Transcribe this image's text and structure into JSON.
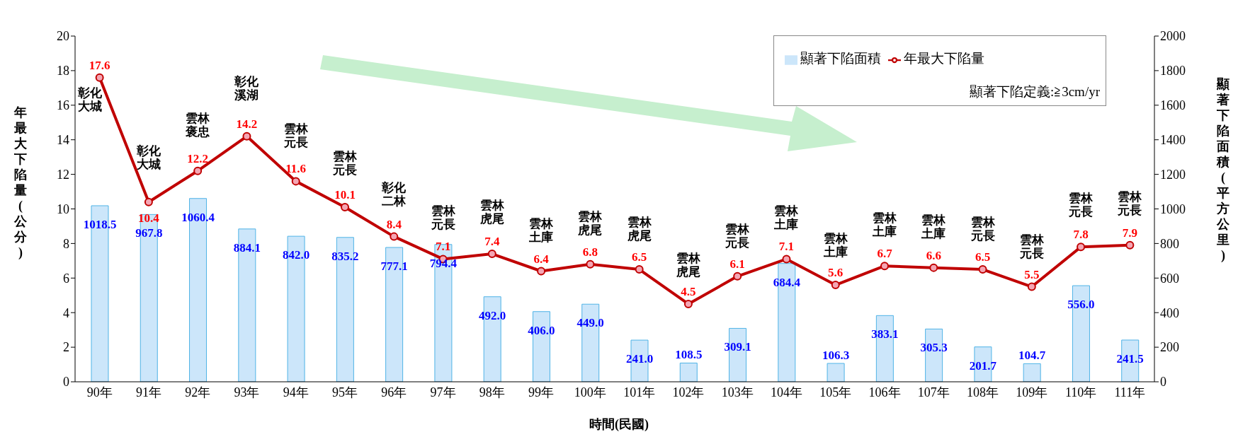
{
  "chart_data": {
    "type": "bar",
    "categories": [
      "90年",
      "91年",
      "92年",
      "93年",
      "94年",
      "95年",
      "96年",
      "97年",
      "98年",
      "99年",
      "100年",
      "101年",
      "102年",
      "103年",
      "104年",
      "105年",
      "106年",
      "107年",
      "108年",
      "109年",
      "110年",
      "111年"
    ],
    "series": [
      {
        "name": "顯著下陷面積",
        "axis": "y2",
        "color": "#cce6fa",
        "values": [
          1018.5,
          967.8,
          1060.4,
          884.1,
          842.0,
          835.2,
          777.1,
          794.4,
          492.0,
          406.0,
          449.0,
          241.0,
          108.5,
          309.1,
          684.4,
          106.3,
          383.1,
          305.3,
          201.7,
          104.7,
          556.0,
          241.5
        ],
        "value_labels": [
          "1018.5",
          "967.8",
          "1060.4",
          "884.1",
          "842.0",
          "835.2",
          "777.1",
          "794.4",
          "492.0",
          "406.0",
          "449.0",
          "241.0",
          "108.5",
          "309.1",
          "684.4",
          "106.3",
          "383.1",
          "305.3",
          "201.7",
          "104.7",
          "556.0",
          "241.5"
        ]
      },
      {
        "name": "年最大下陷量",
        "type": "line",
        "color": "#c00000",
        "values": [
          17.6,
          10.4,
          12.2,
          14.2,
          11.6,
          10.1,
          8.4,
          7.1,
          7.4,
          6.4,
          6.8,
          6.5,
          4.5,
          6.1,
          7.1,
          5.6,
          6.7,
          6.6,
          6.5,
          5.5,
          7.8,
          7.9
        ],
        "value_labels": [
          "17.6",
          "10.4",
          "12.2",
          "14.2",
          "11.6",
          "10.1",
          "8.4",
          "7.1",
          "7.4",
          "6.4",
          "6.8",
          "6.5",
          "4.5",
          "6.1",
          "7.1",
          "5.6",
          "6.7",
          "6.6",
          "6.5",
          "5.5",
          "7.8",
          "7.9"
        ]
      }
    ],
    "xlabel": "時間(民國)",
    "ylabel": "年最大下陷量(公分)",
    "y2label": "顯著下陷面積(平方公里)",
    "ylim": [
      0,
      20
    ],
    "yticks": [
      0,
      2,
      4,
      6,
      8,
      10,
      12,
      14,
      16,
      18,
      20
    ],
    "y2lim": [
      0,
      2000
    ],
    "y2ticks": [
      0,
      200,
      400,
      600,
      800,
      1000,
      1200,
      1400,
      1600,
      1800,
      2000
    ],
    "legend": "top right",
    "marker": "circle",
    "grid": false,
    "annotations": [
      "顯著下陷定義:≧3cm/yr",
      {
        "text": "彰化大城",
        "x": "90年",
        "y": 17.6
      },
      {
        "text": "彰化大城",
        "x": "91年",
        "y": 10.4
      },
      {
        "text": "雲林褒忠",
        "x": "92年",
        "y": 12.2
      },
      {
        "text": "彰化溪湖",
        "x": "93年",
        "y": 14.2
      },
      {
        "text": "雲林元長",
        "x": "94年",
        "y": 11.6
      },
      {
        "text": "雲林元長",
        "x": "95年",
        "y": 10.1
      },
      {
        "text": "彰化二林",
        "x": "96年",
        "y": 8.4
      },
      {
        "text": "雲林元長",
        "x": "97年",
        "y": 7.1
      },
      {
        "text": "雲林虎尾",
        "x": "98年",
        "y": 7.4
      },
      {
        "text": "雲林土庫",
        "x": "99年",
        "y": 6.4
      },
      {
        "text": "雲林虎尾",
        "x": "100年",
        "y": 6.8
      },
      {
        "text": "雲林虎尾",
        "x": "101年",
        "y": 6.5
      },
      {
        "text": "雲林虎尾",
        "x": "102年",
        "y": 4.5
      },
      {
        "text": "雲林元長",
        "x": "103年",
        "y": 6.1
      },
      {
        "text": "雲林土庫",
        "x": "104年",
        "y": 7.1
      },
      {
        "text": "雲林土庫",
        "x": "105年",
        "y": 5.6
      },
      {
        "text": "雲林土庫",
        "x": "106年",
        "y": 6.7
      },
      {
        "text": "雲林土庫",
        "x": "107年",
        "y": 6.6
      },
      {
        "text": "雲林元長",
        "x": "108年",
        "y": 6.5
      },
      {
        "text": "雲林元長",
        "x": "109年",
        "y": 5.5
      },
      {
        "text": "雲林元長",
        "x": "110年",
        "y": 7.8
      },
      {
        "text": "雲林元長",
        "x": "111年",
        "y": 7.9
      }
    ]
  }
}
